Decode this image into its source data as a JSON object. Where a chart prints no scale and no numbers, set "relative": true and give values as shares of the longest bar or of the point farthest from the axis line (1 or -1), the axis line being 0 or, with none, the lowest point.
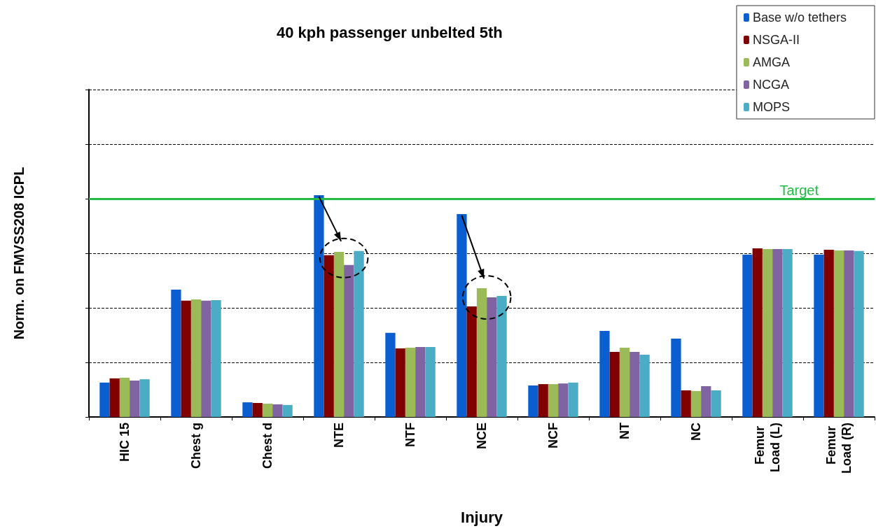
{
  "chart_data": {
    "type": "bar",
    "title": "40 kph passenger unbelted 5th",
    "xlabel": "Injury",
    "ylabel": "Norm. on FMVSS208 ICPL",
    "relative": true,
    "grid": "y",
    "legend": "top right",
    "categories": [
      "HIC 15",
      "Chest g",
      "Chest d",
      "NTE",
      "NTF",
      "NCE",
      "NCF",
      "NT",
      "NC",
      "Femur Load (L)",
      "Femur Load (R)"
    ],
    "series": [
      {
        "name": "Base w/o tethers",
        "color": "#0b5ed0",
        "values": [
          0.155,
          0.574,
          0.066,
          1,
          0.379,
          0.915,
          0.142,
          0.388,
          0.353,
          0.732,
          0.732
        ]
      },
      {
        "name": "NSGA-II",
        "color": "#800000",
        "values": [
          0.174,
          0.524,
          0.063,
          0.729,
          0.309,
          0.498,
          0.148,
          0.293,
          0.12,
          0.76,
          0.754
        ]
      },
      {
        "name": "AMGA",
        "color": "#9bbb59",
        "values": [
          0.177,
          0.53,
          0.06,
          0.744,
          0.312,
          0.58,
          0.148,
          0.312,
          0.117,
          0.757,
          0.751
        ]
      },
      {
        "name": "NCGA",
        "color": "#8064a2",
        "values": [
          0.164,
          0.524,
          0.057,
          0.685,
          0.315,
          0.539,
          0.151,
          0.293,
          0.139,
          0.757,
          0.751
        ]
      },
      {
        "name": "MOPS",
        "color": "#4bacc6",
        "values": [
          0.17,
          0.527,
          0.054,
          0.748,
          0.315,
          0.546,
          0.155,
          0.281,
          0.12,
          0.757,
          0.748
        ]
      }
    ],
    "ref_lines": [
      {
        "axis": "y",
        "value": 0.984,
        "label": "Target",
        "color": "#22bb44"
      }
    ]
  }
}
